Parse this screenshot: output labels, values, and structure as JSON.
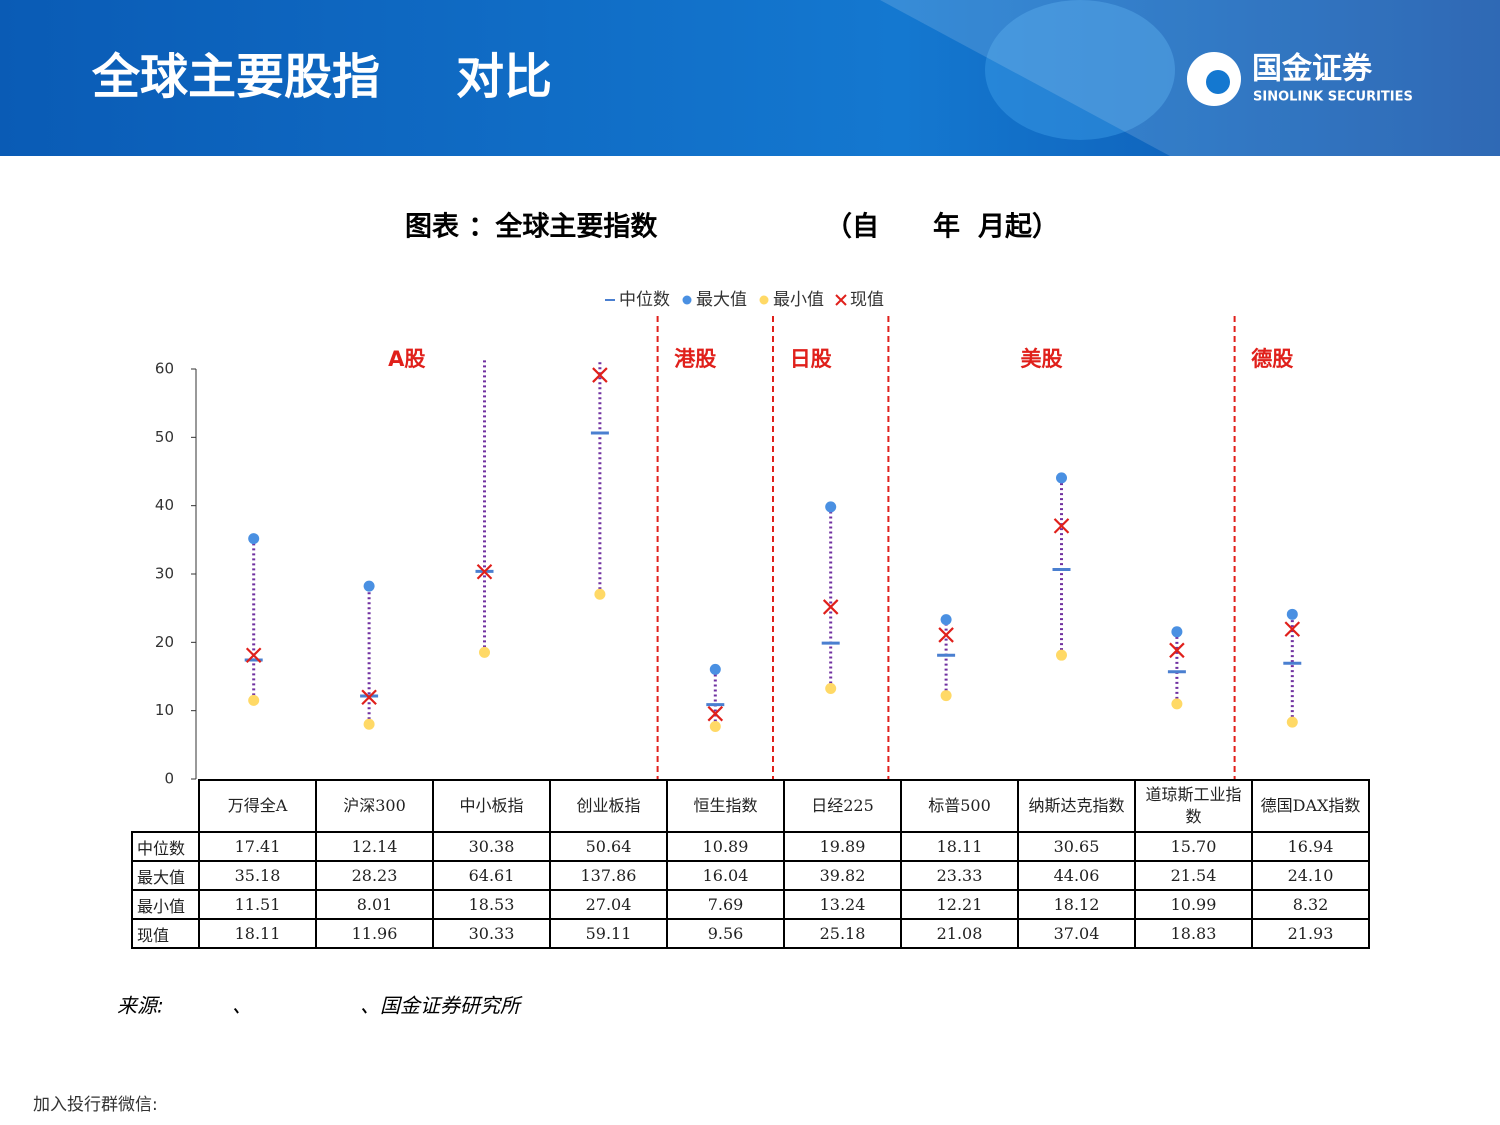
{
  "header": {
    "title_parts": [
      "全球主要股指",
      "对比"
    ],
    "logo_name": "国金证券",
    "logo_sub": "SINOLINK SECURITIES"
  },
  "chart_data": {
    "type": "range",
    "title_parts": [
      "图表 ：全球主要指数",
      "（自",
      "年",
      "月起）"
    ],
    "categories": [
      "万得全A",
      "沪深300",
      "中小板指",
      "创业板指",
      "恒生指数",
      "日经225",
      "标普500",
      "纳斯达克指数",
      "道琼斯工业指数",
      "德国DAX指数"
    ],
    "category_groups": [
      "A股",
      "A股",
      "A股",
      "A股",
      "港股",
      "日股",
      "美股",
      "美股",
      "美股",
      "德股"
    ],
    "series": [
      {
        "name": "中位数",
        "marker": "dash",
        "color": "#4a7fd0",
        "values": [
          17.41,
          12.14,
          30.38,
          50.64,
          10.89,
          19.89,
          18.11,
          30.65,
          15.7,
          16.94
        ],
        "value_labels": [
          "17.41",
          "12.14",
          "30.38",
          "50.64",
          "10.89",
          "19.89",
          "18.11",
          "30.65",
          "15.70",
          "16.94"
        ]
      },
      {
        "name": "最大值",
        "marker": "dot",
        "color": "#4a90e2",
        "values": [
          35.18,
          28.23,
          64.61,
          137.86,
          16.04,
          39.82,
          23.33,
          44.06,
          21.54,
          24.1
        ],
        "value_labels": [
          "35.18",
          "28.23",
          "64.61",
          "137.86",
          "16.04",
          "39.82",
          "23.33",
          "44.06",
          "21.54",
          "24.10"
        ]
      },
      {
        "name": "最小值",
        "marker": "dot",
        "color": "#ffd966",
        "values": [
          11.51,
          8.01,
          18.53,
          27.04,
          7.69,
          13.24,
          12.21,
          18.12,
          10.99,
          8.32
        ],
        "value_labels": [
          "11.51",
          "8.01",
          "18.53",
          "27.04",
          "7.69",
          "13.24",
          "12.21",
          "18.12",
          "10.99",
          "8.32"
        ]
      },
      {
        "name": "现值",
        "marker": "x",
        "color": "#e0201b",
        "values": [
          18.11,
          11.96,
          30.33,
          59.11,
          9.56,
          25.18,
          21.08,
          37.04,
          18.83,
          21.93
        ],
        "value_labels": [
          "18.11",
          "11.96",
          "30.33",
          "59.11",
          "9.56",
          "25.18",
          "21.08",
          "37.04",
          "18.83",
          "21.93"
        ]
      }
    ],
    "range_color": "#7030a0",
    "ylim": [
      0,
      60
    ],
    "yticks": [
      0,
      10,
      20,
      30,
      40,
      50,
      60
    ],
    "legend": "top"
  },
  "source_parts": [
    "来源:",
    "、",
    "、国金证券研究所"
  ],
  "footer": "加入投行群微信:"
}
